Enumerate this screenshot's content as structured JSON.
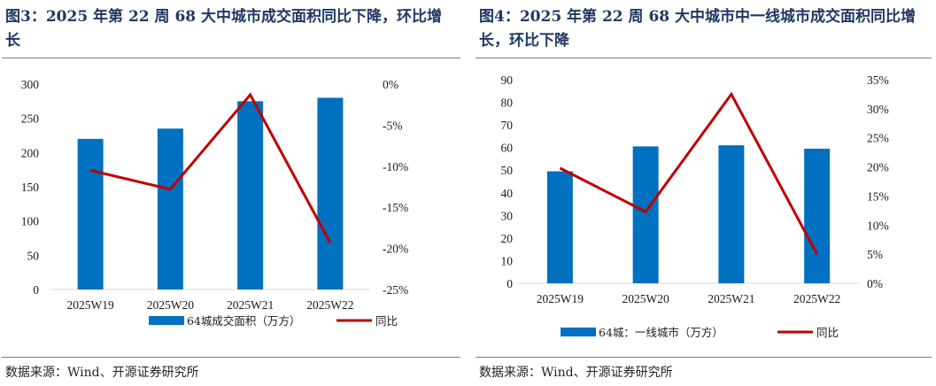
{
  "left": {
    "title": "图3：2025 年第 22 周 68 大中城市成交面积同比下降，环比增长",
    "source": "数据来源：Wind、开源证券研究所",
    "chart_data": {
      "type": "bar",
      "categories": [
        "2025W19",
        "2025W20",
        "2025W21",
        "2025W22"
      ],
      "series": [
        {
          "name": "64城成交面积（万方）",
          "kind": "bar",
          "axis": "left",
          "color": "#0070c0",
          "values": [
            220,
            235,
            275,
            280
          ]
        },
        {
          "name": "同比",
          "kind": "line",
          "axis": "right",
          "color": "#c00000",
          "values": [
            -10.5,
            -12.8,
            -1.3,
            -19.3
          ]
        }
      ],
      "y_left": {
        "min": 0,
        "max": 300,
        "step": 50,
        "ticks": [
          "0",
          "50",
          "100",
          "150",
          "200",
          "250",
          "300"
        ]
      },
      "y_right": {
        "min": -25,
        "max": 0,
        "step": 5,
        "ticks": [
          "-25%",
          "-20%",
          "-15%",
          "-10%",
          "-5%",
          "0%"
        ]
      },
      "legend_position": "bottom"
    }
  },
  "right": {
    "title": "图4：2025 年第 22 周 68 大中城市中一线城市成交面积同比增长，环比下降",
    "source": "数据来源：Wind、开源证券研究所",
    "chart_data": {
      "type": "bar",
      "categories": [
        "2025W19",
        "2025W20",
        "2025W21",
        "2025W22"
      ],
      "series": [
        {
          "name": "64城：一线城市（万方）",
          "kind": "bar",
          "axis": "left",
          "color": "#0070c0",
          "values": [
            49.5,
            60.5,
            61,
            59.5
          ]
        },
        {
          "name": "同比",
          "kind": "line",
          "axis": "right",
          "color": "#c00000",
          "values": [
            19.8,
            12.3,
            32.5,
            5.0
          ]
        }
      ],
      "y_left": {
        "min": 0,
        "max": 90,
        "step": 10,
        "ticks": [
          "0",
          "10",
          "20",
          "30",
          "40",
          "50",
          "60",
          "70",
          "80",
          "90"
        ]
      },
      "y_right": {
        "min": 0,
        "max": 35,
        "step": 5,
        "ticks": [
          "0%",
          "5%",
          "10%",
          "15%",
          "20%",
          "25%",
          "30%",
          "35%"
        ]
      },
      "legend_position": "bottom"
    }
  }
}
